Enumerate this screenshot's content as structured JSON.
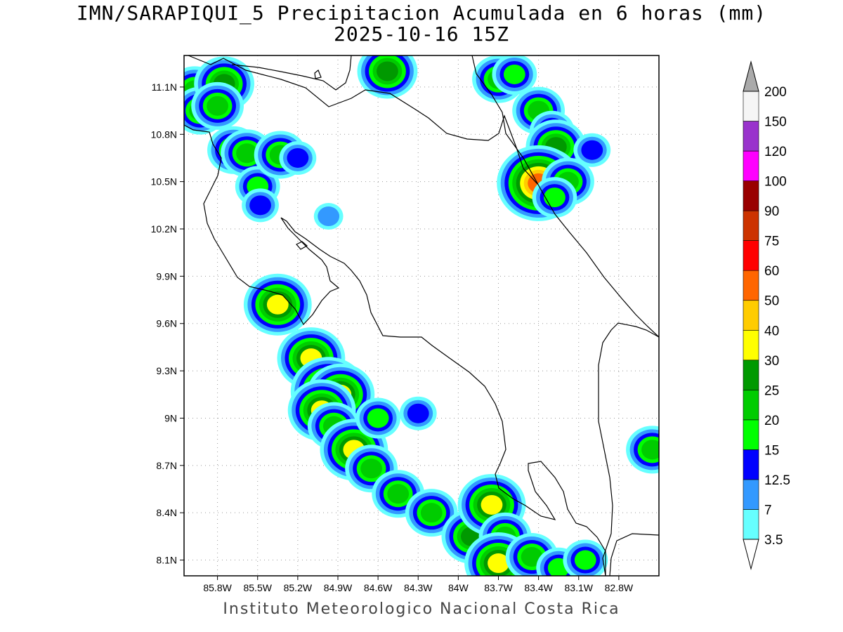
{
  "title": {
    "line1": "IMN/SARAPIQUI_5 Precipitacion Acumulada en 6 horas (mm)",
    "line2": "2025-10-16 15Z"
  },
  "footer": "Instituto Meteorologico Nacional Costa Rica",
  "map": {
    "lon_range": [
      -86.05,
      -82.5
    ],
    "lat_range": [
      8.0,
      11.3
    ],
    "lon_ticks": [
      {
        "value": -85.8,
        "label": "85.8W"
      },
      {
        "value": -85.5,
        "label": "85.5W"
      },
      {
        "value": -85.2,
        "label": "85.2W"
      },
      {
        "value": -84.9,
        "label": "84.9W"
      },
      {
        "value": -84.6,
        "label": "84.6W"
      },
      {
        "value": -84.3,
        "label": "84.3W"
      },
      {
        "value": -84.0,
        "label": "84W"
      },
      {
        "value": -83.7,
        "label": "83.7W"
      },
      {
        "value": -83.4,
        "label": "83.4W"
      },
      {
        "value": -83.1,
        "label": "83.1W"
      },
      {
        "value": -82.8,
        "label": "82.8W"
      }
    ],
    "lat_ticks": [
      {
        "value": 11.1,
        "label": "11.1N"
      },
      {
        "value": 10.8,
        "label": "10.8N"
      },
      {
        "value": 10.5,
        "label": "10.5N"
      },
      {
        "value": 10.2,
        "label": "10.2N"
      },
      {
        "value": 9.9,
        "label": "9.9N"
      },
      {
        "value": 9.6,
        "label": "9.6N"
      },
      {
        "value": 9.3,
        "label": "9.3N"
      },
      {
        "value": 9.0,
        "label": "9N"
      },
      {
        "value": 8.7,
        "label": "8.7N"
      },
      {
        "value": 8.4,
        "label": "8.4N"
      },
      {
        "value": 8.1,
        "label": "8.1N"
      }
    ],
    "grid": "dotted"
  },
  "colorbar": {
    "orientation": "vertical",
    "levels": [
      "3.5",
      "7",
      "12.5",
      "15",
      "20",
      "25",
      "30",
      "40",
      "50",
      "60",
      "75",
      "90",
      "100",
      "120",
      "150",
      "200"
    ],
    "colors": [
      "#66ffff",
      "#3399ff",
      "#0000ff",
      "#00ff00",
      "#00cc00",
      "#009900",
      "#ffff00",
      "#ffcc00",
      "#ff6600",
      "#ff0000",
      "#cc3300",
      "#990000",
      "#ff00ff",
      "#9933cc",
      "#f5f5f5"
    ],
    "over_color": "#aaaaaa",
    "under_color": "#ffffff"
  },
  "precip_cells": [
    {
      "lon": -85.97,
      "lat": 11.08,
      "value": 20
    },
    {
      "lon": -85.93,
      "lat": 10.95,
      "value": 20
    },
    {
      "lon": -85.75,
      "lat": 11.12,
      "value": 25
    },
    {
      "lon": -85.8,
      "lat": 10.98,
      "value": 20
    },
    {
      "lon": -85.68,
      "lat": 10.7,
      "value": 20
    },
    {
      "lon": -85.58,
      "lat": 10.68,
      "value": 20
    },
    {
      "lon": -85.5,
      "lat": 10.47,
      "value": 15
    },
    {
      "lon": -85.48,
      "lat": 10.35,
      "value": 12.5
    },
    {
      "lon": -85.33,
      "lat": 10.67,
      "value": 20
    },
    {
      "lon": -85.2,
      "lat": 10.65,
      "value": 12.5
    },
    {
      "lon": -84.97,
      "lat": 10.28,
      "value": 7
    },
    {
      "lon": -84.53,
      "lat": 11.2,
      "value": 25
    },
    {
      "lon": -83.7,
      "lat": 11.15,
      "value": 20
    },
    {
      "lon": -83.58,
      "lat": 11.18,
      "value": 15
    },
    {
      "lon": -83.4,
      "lat": 10.95,
      "value": 20
    },
    {
      "lon": -83.3,
      "lat": 10.82,
      "value": 15
    },
    {
      "lon": -83.27,
      "lat": 10.72,
      "value": 25
    },
    {
      "lon": -83.35,
      "lat": 10.52,
      "value": 30
    },
    {
      "lon": -83.4,
      "lat": 10.49,
      "value": 50
    },
    {
      "lon": -83.18,
      "lat": 10.5,
      "value": 20
    },
    {
      "lon": -83.28,
      "lat": 10.4,
      "value": 15
    },
    {
      "lon": -83.0,
      "lat": 10.7,
      "value": 12.5
    },
    {
      "lon": -85.35,
      "lat": 9.72,
      "value": 30
    },
    {
      "lon": -85.1,
      "lat": 9.38,
      "value": 30
    },
    {
      "lon": -84.97,
      "lat": 9.17,
      "value": 40
    },
    {
      "lon": -84.88,
      "lat": 9.15,
      "value": 30
    },
    {
      "lon": -85.02,
      "lat": 9.05,
      "value": 30
    },
    {
      "lon": -84.93,
      "lat": 8.95,
      "value": 20
    },
    {
      "lon": -84.78,
      "lat": 8.8,
      "value": 30
    },
    {
      "lon": -84.65,
      "lat": 8.68,
      "value": 20
    },
    {
      "lon": -84.6,
      "lat": 9.0,
      "value": 15
    },
    {
      "lon": -84.45,
      "lat": 8.52,
      "value": 20
    },
    {
      "lon": -84.2,
      "lat": 8.4,
      "value": 20
    },
    {
      "lon": -83.9,
      "lat": 8.25,
      "value": 25
    },
    {
      "lon": -83.75,
      "lat": 8.45,
      "value": 30
    },
    {
      "lon": -83.65,
      "lat": 8.25,
      "value": 20
    },
    {
      "lon": -83.7,
      "lat": 8.08,
      "value": 30
    },
    {
      "lon": -83.45,
      "lat": 8.12,
      "value": 20
    },
    {
      "lon": -83.25,
      "lat": 8.05,
      "value": 15
    },
    {
      "lon": -83.05,
      "lat": 8.1,
      "value": 15
    },
    {
      "lon": -82.55,
      "lat": 8.8,
      "value": 20
    },
    {
      "lon": -84.3,
      "lat": 9.03,
      "value": 12.5
    }
  ]
}
